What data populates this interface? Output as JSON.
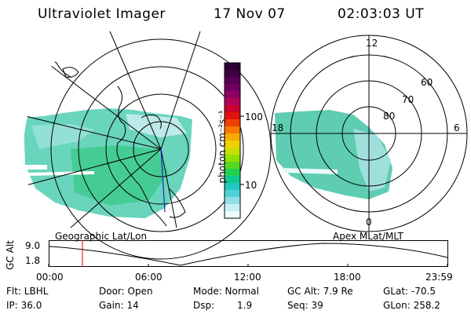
{
  "header": {
    "instrument": "Ultraviolet Imager",
    "date": "17 Nov 07",
    "time": "02:03:03 UT"
  },
  "colorbar": {
    "unit_label": "photon cm⁻²s⁻¹",
    "ticks": [
      "100",
      "10"
    ],
    "colors": [
      "#2a0033",
      "#3c0040",
      "#560054",
      "#700060",
      "#900060",
      "#b0005a",
      "#cc0030",
      "#e01010",
      "#ee4000",
      "#f57800",
      "#f8aa00",
      "#f0d000",
      "#c8e000",
      "#90e000",
      "#55d820",
      "#20d050",
      "#10c890",
      "#20c8c0",
      "#50d0d8",
      "#90e0e8",
      "#c8f0f4",
      "#eefcfc"
    ]
  },
  "geo_map": {
    "label": "Geographic Lat/Lon"
  },
  "polar_plot": {
    "label": "Apex MLat/MLT",
    "mlt_labels": {
      "top": "12",
      "left": "18",
      "right": "6",
      "bottom": "0"
    },
    "lat_labels": [
      "60",
      "70",
      "80"
    ]
  },
  "altitude_strip": {
    "ylabel": "GC Alt",
    "yticks": [
      "9.0",
      "1.8"
    ],
    "xticks": [
      "00:00",
      "06:00",
      "12:00",
      "18:00",
      "23:59"
    ],
    "cursor_time": "02:03",
    "cursor_color": "#dd0000"
  },
  "status": {
    "flt": "Flt: LBHL",
    "ip": "IP: 36.0",
    "door": "Door: Open",
    "gain": "Gain: 14",
    "mode": "Mode: Normal",
    "dsp_label": "Dsp:",
    "dsp_value": "1.9",
    "gc_alt": "GC Alt: 7.9 Re",
    "seq": "Seq: 39",
    "glat": "GLat: -70.5",
    "glon": "GLon: 258.2"
  }
}
